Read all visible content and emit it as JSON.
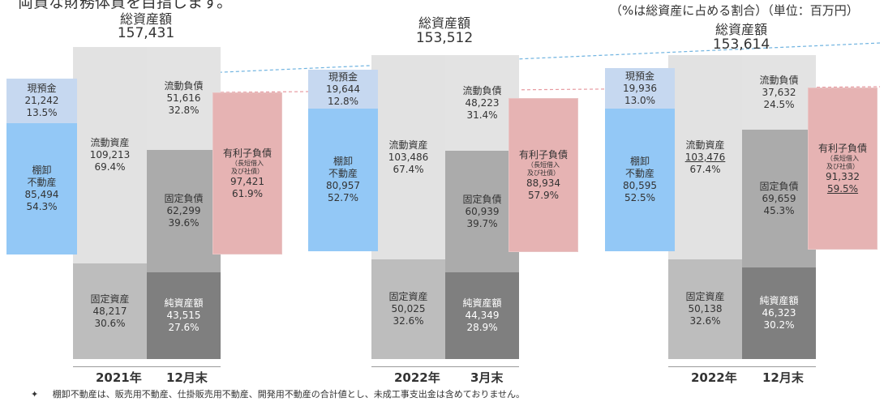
{
  "page": {
    "cut_title": "両資な財務体質を目指します。",
    "unit_note": "（%は総資産に占める割合）（単位：百万円）",
    "footnote": "棚卸不動産は、販売用不動産、仕掛販売用不動産、開発用不動産の合計値とし、未成工事支出金は含めておりません。",
    "footnote_bullet": "✦"
  },
  "chart_data": {
    "type": "bar",
    "subtype": "stacked-balance-sheet",
    "unit": "百万円",
    "periods": [
      {
        "label_year": "2021年",
        "label_month": "12月末",
        "total_label": "総資産額",
        "total_value": "157,431",
        "assets": {
          "cash": {
            "name": "現預金",
            "value": "21,242",
            "pct": "13.5%"
          },
          "inventory": {
            "name_1": "棚卸",
            "name_2": "不動産",
            "value": "85,494",
            "pct": "54.3%"
          },
          "current": {
            "name": "流動資産",
            "value": "109,213",
            "pct": "69.4%"
          },
          "fixed": {
            "name": "固定資産",
            "value": "48,217",
            "pct": "30.6%"
          }
        },
        "liabilities": {
          "current": {
            "name": "流動負債",
            "value": "51,616",
            "pct": "32.8%"
          },
          "fixed": {
            "name": "固定負債",
            "value": "62,299",
            "pct": "39.6%"
          },
          "net": {
            "name": "純資産額",
            "value": "43,515",
            "pct": "27.6%"
          }
        },
        "debt": {
          "name": "有利子負債",
          "sub_1": "（長短借入",
          "sub_2": "及び社債）",
          "value": "97,421",
          "pct": "61.9%"
        }
      },
      {
        "label_year": "2022年",
        "label_month": "3月末",
        "total_label": "総資産額",
        "total_value": "153,512",
        "assets": {
          "cash": {
            "name": "現預金",
            "value": "19,644",
            "pct": "12.8%"
          },
          "inventory": {
            "name_1": "棚卸",
            "name_2": "不動産",
            "value": "80,957",
            "pct": "52.7%"
          },
          "current": {
            "name": "流動資産",
            "value": "103,486",
            "pct": "67.4%"
          },
          "fixed": {
            "name": "固定資産",
            "value": "50,025",
            "pct": "32.6%"
          }
        },
        "liabilities": {
          "current": {
            "name": "流動負債",
            "value": "48,223",
            "pct": "31.4%"
          },
          "fixed": {
            "name": "固定負債",
            "value": "60,939",
            "pct": "39.7%"
          },
          "net": {
            "name": "純資産額",
            "value": "44,349",
            "pct": "28.9%"
          }
        },
        "debt": {
          "name": "有利子負債",
          "sub_1": "（長短借入",
          "sub_2": "及び社債）",
          "value": "88,934",
          "pct": "57.9%"
        }
      },
      {
        "label_year": "2022年",
        "label_month": "12月末",
        "total_label": "総資産額",
        "total_value": "153,614",
        "assets": {
          "cash": {
            "name": "現預金",
            "value": "19,936",
            "pct": "13.0%"
          },
          "inventory": {
            "name_1": "棚卸",
            "name_2": "不動産",
            "value": "80,595",
            "pct": "52.5%"
          },
          "current": {
            "name": "流動資産",
            "value": "103,476",
            "pct": "67.4%"
          },
          "fixed": {
            "name": "固定資産",
            "value": "50,138",
            "pct": "32.6%"
          }
        },
        "liabilities": {
          "current": {
            "name": "流動負債",
            "value": "37,632",
            "pct": "24.5%"
          },
          "fixed": {
            "name": "固定負債",
            "value": "69,659",
            "pct": "45.3%"
          },
          "net": {
            "name": "純資産額",
            "value": "46,323",
            "pct": "30.2%"
          }
        },
        "debt": {
          "name": "有利子負債",
          "sub_1": "（長短借入",
          "sub_2": "及び社債）",
          "value": "91,332",
          "pct": "59.5%"
        }
      }
    ],
    "colors": {
      "cash": "#c6d8f0",
      "inventory": "#93c8f6",
      "current_assets": "#e2e2e2",
      "fixed_assets": "#bdbdbd",
      "current_liabilities": "#e3e3e3",
      "fixed_liabilities": "#ababab",
      "net_assets": "#7f7f7f",
      "debt": "#e6b3b3",
      "trend_blue": "#6fb3e0",
      "trend_pink": "#e79aa0"
    }
  }
}
